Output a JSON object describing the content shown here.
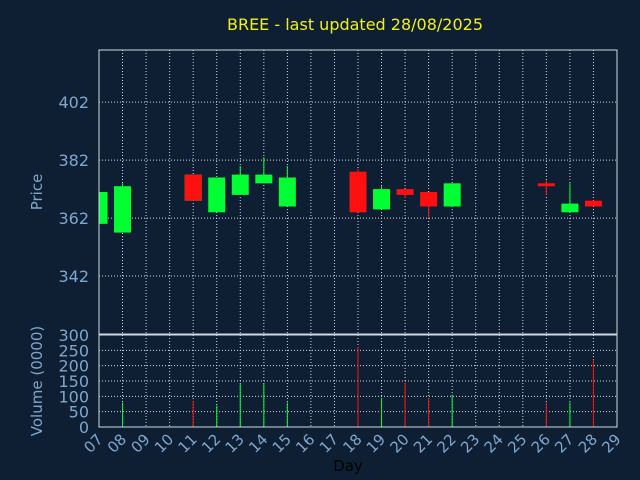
{
  "chart_data": {
    "type": "candlestick",
    "title": "BREE - last updated 28/08/2025",
    "xlabel": "Day",
    "price_panel": {
      "ylabel": "Price",
      "ylim": [
        322,
        420
      ],
      "yticks": [
        342,
        362,
        382,
        402
      ],
      "grid": true
    },
    "volume_panel": {
      "ylabel": "Volume (0000)",
      "ylim": [
        0,
        300
      ],
      "yticks": [
        0,
        50,
        100,
        150,
        200,
        250,
        300
      ],
      "grid": true
    },
    "x_ticks": [
      "07",
      "08",
      "09",
      "10",
      "11",
      "12",
      "13",
      "14",
      "15",
      "16",
      "17",
      "18",
      "19",
      "20",
      "21",
      "22",
      "23",
      "24",
      "25",
      "26",
      "27",
      "28",
      "29"
    ],
    "x_range": [
      7,
      29
    ],
    "colors": {
      "up": "#00ff33",
      "down": "#ff1010"
    },
    "candles": [
      {
        "day": 7,
        "open": 360,
        "high": 372,
        "low": 360,
        "close": 371
      },
      {
        "day": 8,
        "open": 357,
        "high": 374,
        "low": 357,
        "close": 373
      },
      {
        "day": 11,
        "open": 368,
        "high": 377,
        "low": 368,
        "close": 377
      },
      {
        "day": 11,
        "open": 377,
        "high": 377,
        "low": 368,
        "close": 368
      },
      {
        "day": 12,
        "open": 364,
        "high": 376,
        "low": 364,
        "close": 376
      },
      {
        "day": 13,
        "open": 370,
        "high": 380,
        "low": 370,
        "close": 377
      },
      {
        "day": 14,
        "open": 374,
        "high": 383,
        "low": 374,
        "close": 377
      },
      {
        "day": 15,
        "open": 366,
        "high": 380,
        "low": 366,
        "close": 376
      },
      {
        "day": 18,
        "open": 378,
        "high": 379,
        "low": 364,
        "close": 364
      },
      {
        "day": 19,
        "open": 365,
        "high": 373,
        "low": 365,
        "close": 372
      },
      {
        "day": 20,
        "open": 372,
        "high": 372,
        "low": 369,
        "close": 370
      },
      {
        "day": 21,
        "open": 371,
        "high": 371,
        "low": 362,
        "close": 366
      },
      {
        "day": 22,
        "open": 366,
        "high": 374,
        "low": 366,
        "close": 374
      },
      {
        "day": 26,
        "open": 374,
        "high": 375,
        "low": 370,
        "close": 373
      },
      {
        "day": 27,
        "open": 364,
        "high": 374,
        "low": 364,
        "close": 367
      },
      {
        "day": 28,
        "open": 368,
        "high": 368,
        "low": 366,
        "close": 366
      }
    ],
    "volume": [
      {
        "day": 8,
        "value": 80,
        "dir": "up"
      },
      {
        "day": 11,
        "value": 85,
        "dir": "down"
      },
      {
        "day": 12,
        "value": 70,
        "dir": "up"
      },
      {
        "day": 13,
        "value": 140,
        "dir": "up"
      },
      {
        "day": 14,
        "value": 140,
        "dir": "up"
      },
      {
        "day": 15,
        "value": 80,
        "dir": "up"
      },
      {
        "day": 18,
        "value": 260,
        "dir": "down"
      },
      {
        "day": 19,
        "value": 95,
        "dir": "up"
      },
      {
        "day": 20,
        "value": 145,
        "dir": "down"
      },
      {
        "day": 21,
        "value": 95,
        "dir": "down"
      },
      {
        "day": 22,
        "value": 105,
        "dir": "up"
      },
      {
        "day": 26,
        "value": 80,
        "dir": "down"
      },
      {
        "day": 27,
        "value": 80,
        "dir": "up"
      },
      {
        "day": 28,
        "value": 220,
        "dir": "down"
      }
    ]
  }
}
